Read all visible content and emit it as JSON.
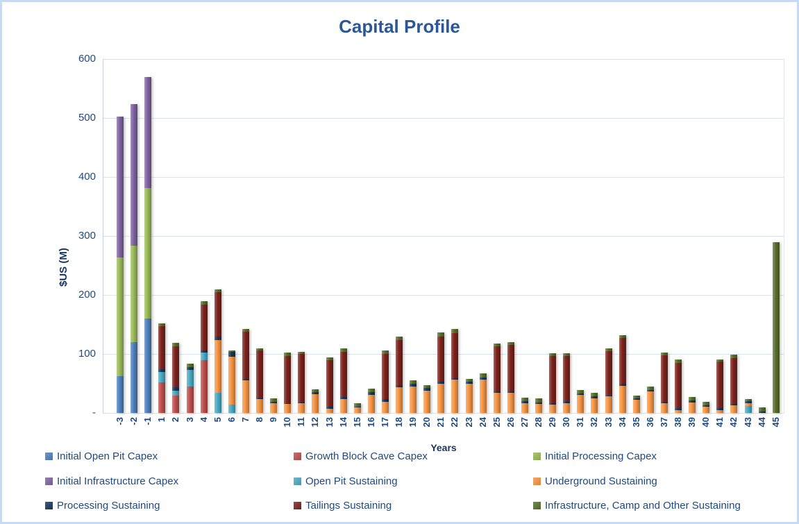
{
  "chart_data": {
    "type": "bar",
    "stacked": true,
    "title": "Capital Profile",
    "xlabel": "Years",
    "ylabel": "$US (M)",
    "ylim": [
      0,
      600
    ],
    "ytick_interval": 100,
    "ytick_labels": [
      "-",
      "100",
      "200",
      "300",
      "400",
      "500",
      "600"
    ],
    "grid": true,
    "legend_position": "bottom",
    "categories": [
      "-3",
      "-2",
      "-1",
      "1",
      "2",
      "3",
      "4",
      "5",
      "6",
      "7",
      "8",
      "9",
      "10",
      "11",
      "12",
      "13",
      "14",
      "15",
      "16",
      "17",
      "18",
      "19",
      "20",
      "21",
      "22",
      "23",
      "24",
      "25",
      "26",
      "27",
      "28",
      "29",
      "30",
      "31",
      "32",
      "33",
      "34",
      "35",
      "36",
      "37",
      "38",
      "39",
      "40",
      "41",
      "42",
      "43",
      "44",
      "45"
    ],
    "series": [
      {
        "name": "Initial Open Pit Capex",
        "color": "#4F81BD",
        "values": [
          62,
          120,
          160,
          0,
          0,
          0,
          0,
          0,
          0,
          0,
          0,
          0,
          0,
          0,
          0,
          0,
          0,
          0,
          0,
          0,
          0,
          0,
          0,
          0,
          0,
          0,
          0,
          0,
          0,
          0,
          0,
          0,
          0,
          0,
          0,
          0,
          0,
          0,
          0,
          0,
          0,
          0,
          0,
          0,
          0,
          0,
          0,
          0
        ]
      },
      {
        "name": "Growth Block Cave Capex",
        "color": "#C0504D",
        "values": [
          0,
          0,
          0,
          52,
          30,
          45,
          90,
          0,
          0,
          0,
          0,
          0,
          0,
          0,
          0,
          0,
          0,
          0,
          0,
          0,
          0,
          0,
          0,
          0,
          0,
          0,
          0,
          0,
          0,
          0,
          0,
          0,
          0,
          0,
          0,
          0,
          0,
          0,
          0,
          0,
          0,
          0,
          0,
          0,
          0,
          0,
          0,
          0
        ]
      },
      {
        "name": "Initial Processing Capex",
        "color": "#9BBB59",
        "values": [
          201,
          163,
          221,
          0,
          0,
          0,
          0,
          0,
          0,
          0,
          0,
          0,
          0,
          0,
          0,
          0,
          0,
          0,
          0,
          0,
          0,
          0,
          0,
          0,
          0,
          0,
          0,
          0,
          0,
          0,
          0,
          0,
          0,
          0,
          0,
          0,
          0,
          0,
          0,
          0,
          0,
          0,
          0,
          0,
          0,
          0,
          0,
          0
        ]
      },
      {
        "name": "Initial Infrastructure Capex",
        "color": "#8064A2",
        "values": [
          239,
          240,
          188,
          0,
          0,
          0,
          0,
          0,
          0,
          0,
          0,
          0,
          0,
          0,
          0,
          0,
          0,
          0,
          0,
          0,
          0,
          0,
          0,
          0,
          0,
          0,
          0,
          0,
          0,
          0,
          0,
          0,
          0,
          0,
          0,
          0,
          0,
          0,
          0,
          0,
          0,
          0,
          0,
          0,
          0,
          0,
          0,
          0
        ]
      },
      {
        "name": "Open Pit Sustaining",
        "color": "#4BACC6",
        "values": [
          0,
          0,
          0,
          17,
          8,
          28,
          12,
          34,
          14,
          0,
          0,
          0,
          0,
          0,
          0,
          0,
          0,
          0,
          0,
          0,
          0,
          0,
          0,
          0,
          0,
          0,
          0,
          0,
          0,
          0,
          0,
          0,
          0,
          0,
          0,
          0,
          0,
          0,
          0,
          0,
          0,
          0,
          0,
          0,
          0,
          12,
          0,
          0
        ]
      },
      {
        "name": "Underground Sustaining",
        "color": "#F79646",
        "values": [
          0,
          0,
          0,
          0,
          0,
          0,
          0,
          90,
          81,
          55,
          24,
          16,
          15,
          17,
          32,
          7,
          23,
          9,
          31,
          19,
          44,
          45,
          38,
          50,
          56,
          50,
          57,
          34,
          34,
          17,
          15,
          14,
          17,
          31,
          25,
          28,
          46,
          22,
          36,
          17,
          5,
          18,
          11,
          5,
          13,
          5,
          0,
          0
        ]
      },
      {
        "name": "Processing Sustaining",
        "color": "#17375E",
        "values": [
          0,
          0,
          0,
          5,
          5,
          5,
          4,
          5,
          8,
          3,
          2,
          3,
          2,
          2,
          3,
          4,
          4,
          2,
          4,
          4,
          3,
          4,
          4,
          3,
          3,
          3,
          3,
          3,
          3,
          3,
          3,
          3,
          3,
          2,
          3,
          2,
          3,
          3,
          3,
          2,
          3,
          3,
          2,
          3,
          2,
          3,
          2,
          0
        ]
      },
      {
        "name": "Tailings Sustaining",
        "color": "#7E231D",
        "values": [
          0,
          0,
          0,
          73,
          70,
          0,
          77,
          76,
          0,
          80,
          80,
          0,
          80,
          81,
          0,
          78,
          77,
          0,
          0,
          77,
          77,
          0,
          0,
          76,
          76,
          0,
          0,
          76,
          78,
          0,
          0,
          80,
          77,
          0,
          0,
          75,
          78,
          0,
          0,
          79,
          77,
          0,
          0,
          79,
          78,
          0,
          0,
          0
        ]
      },
      {
        "name": "Infrastructure, Camp and Other Sustaining",
        "color": "#57702C",
        "values": [
          0,
          0,
          0,
          5,
          6,
          5,
          6,
          4,
          3,
          4,
          3,
          6,
          5,
          4,
          5,
          5,
          6,
          5,
          6,
          6,
          6,
          6,
          5,
          7,
          7,
          5,
          7,
          5,
          5,
          6,
          7,
          4,
          4,
          6,
          6,
          5,
          5,
          5,
          6,
          4,
          6,
          6,
          6,
          4,
          6,
          4,
          7,
          289
        ]
      }
    ]
  }
}
